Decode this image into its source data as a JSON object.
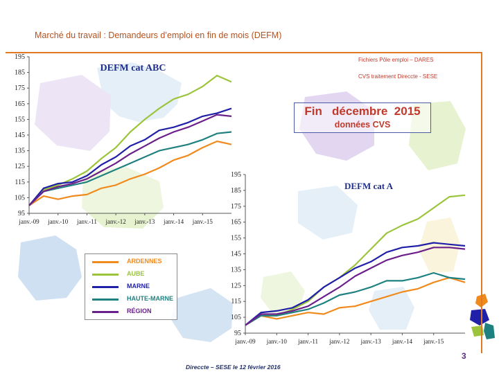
{
  "slide": {
    "title": "Marché du travail : Demandeurs d’emploi en fin de mois (DEFM)",
    "source_line_1": "Fichiers Pôle emploi – DARES",
    "source_line_2": "CVS traitement Direccte - SESE",
    "headline": "Fin   décembre  2015",
    "subheadline": "données CVS",
    "footer": "Direccte – SESE le 12 février 2016",
    "page_number": "3"
  },
  "legend": [
    {
      "label": "ARDENNES",
      "color": "#f08a1c"
    },
    {
      "label": "AUBE",
      "color": "#9bc43a"
    },
    {
      "label": "MARNE",
      "color": "#1f1fa8"
    },
    {
      "label": "HAUTE-MARNE",
      "color": "#1f8080"
    },
    {
      "label": "RÉGION",
      "color": "#6b1f8a"
    }
  ],
  "chart_data": [
    {
      "type": "line",
      "title": "DEFM cat ABC",
      "ylim": [
        95,
        195
      ],
      "yticks": [
        95,
        105,
        115,
        125,
        135,
        145,
        155,
        165,
        175,
        185,
        195
      ],
      "xticks": [
        "janv.-09",
        "janv.-10",
        "janv.-11",
        "janv.-12",
        "janv.-13",
        "janv.-14",
        "janv.-15"
      ],
      "xlim": [
        0,
        84
      ],
      "grid": false,
      "x": [
        0,
        6,
        12,
        18,
        24,
        30,
        36,
        42,
        48,
        54,
        60,
        66,
        72,
        78,
        84
      ],
      "series": [
        {
          "name": "ARDENNES",
          "color": "#f08a1c",
          "values": [
            100,
            106,
            104,
            106,
            107,
            111,
            113,
            117,
            120,
            124,
            129,
            132,
            137,
            141,
            139
          ]
        },
        {
          "name": "AUBE",
          "color": "#9bc43a",
          "values": [
            100,
            110,
            113,
            117,
            122,
            130,
            137,
            147,
            155,
            162,
            168,
            171,
            176,
            183,
            179
          ]
        },
        {
          "name": "MARNE",
          "color": "#1f1fa8",
          "values": [
            100,
            111,
            114,
            115,
            119,
            126,
            131,
            138,
            142,
            148,
            150,
            153,
            157,
            159,
            162
          ]
        },
        {
          "name": "HAUTE-MARNE",
          "color": "#1f8080",
          "values": [
            100,
            109,
            111,
            113,
            115,
            119,
            123,
            127,
            131,
            135,
            137,
            139,
            142,
            146,
            147
          ]
        },
        {
          "name": "RÉGION",
          "color": "#6b1f8a",
          "values": [
            100,
            109,
            112,
            114,
            117,
            122,
            127,
            133,
            138,
            143,
            147,
            150,
            154,
            158,
            157
          ]
        }
      ]
    },
    {
      "type": "line",
      "title": "DEFM cat A",
      "ylim": [
        95,
        195
      ],
      "yticks": [
        95,
        105,
        115,
        125,
        135,
        145,
        155,
        165,
        175,
        185,
        195
      ],
      "xticks": [
        "janv.-09",
        "janv.-10",
        "janv.-11",
        "janv.-12",
        "janv.-13",
        "janv.-14",
        "janv.-15"
      ],
      "xlim": [
        0,
        84
      ],
      "grid": false,
      "x": [
        0,
        6,
        12,
        18,
        24,
        30,
        36,
        42,
        48,
        54,
        60,
        66,
        72,
        78,
        84
      ],
      "series": [
        {
          "name": "ARDENNES",
          "color": "#f08a1c",
          "values": [
            100,
            106,
            104,
            106,
            108,
            107,
            111,
            112,
            115,
            118,
            121,
            123,
            127,
            130,
            127
          ]
        },
        {
          "name": "AUBE",
          "color": "#9bc43a",
          "values": [
            100,
            106,
            106,
            110,
            115,
            124,
            130,
            138,
            148,
            158,
            163,
            167,
            174,
            181,
            182
          ]
        },
        {
          "name": "MARNE",
          "color": "#1f1fa8",
          "values": [
            100,
            108,
            109,
            111,
            116,
            124,
            130,
            136,
            140,
            146,
            149,
            150,
            152,
            151,
            150
          ]
        },
        {
          "name": "HAUTE-MARNE",
          "color": "#1f8080",
          "values": [
            100,
            106,
            106,
            108,
            110,
            114,
            119,
            121,
            124,
            128,
            128,
            130,
            133,
            130,
            129
          ]
        },
        {
          "name": "RÉGION",
          "color": "#6b1f8a",
          "values": [
            100,
            107,
            107,
            109,
            112,
            118,
            124,
            131,
            136,
            141,
            144,
            146,
            149,
            149,
            148
          ]
        }
      ]
    }
  ]
}
